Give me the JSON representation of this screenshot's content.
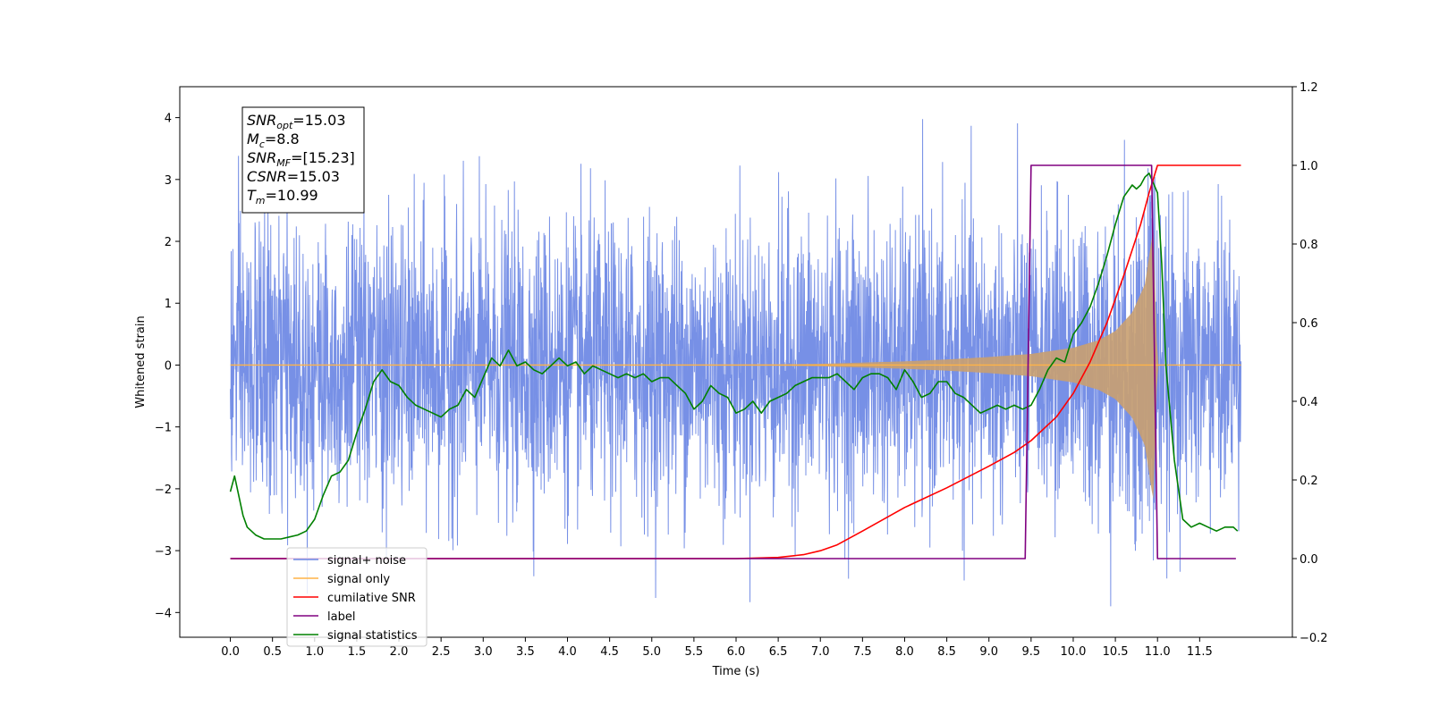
{
  "chart_data": {
    "type": "line",
    "xlabel": "Time (s)",
    "ylabel": "Whitened strain",
    "xlim": [
      -0.6,
      12.6
    ],
    "ylim": [
      -4.4,
      4.5
    ],
    "y2lim": [
      -0.2,
      1.2
    ],
    "x_ticks": [
      "0.0",
      "0.5",
      "1.0",
      "1.5",
      "2.0",
      "2.5",
      "3.0",
      "3.5",
      "4.0",
      "4.5",
      "5.0",
      "5.5",
      "6.0",
      "6.5",
      "7.0",
      "7.5",
      "8.0",
      "8.5",
      "9.0",
      "9.5",
      "10.0",
      "10.5",
      "11.0",
      "11.5"
    ],
    "y_ticks": [
      "−4",
      "−3",
      "−2",
      "−1",
      "0",
      "1",
      "2",
      "3",
      "4"
    ],
    "y2_ticks": [
      "−0.2",
      "0.0",
      "0.2",
      "0.4",
      "0.6",
      "0.8",
      "1.0",
      "1.2"
    ],
    "info_box": [
      {
        "base": "SNR",
        "sub": "opt",
        "rest": "=15.03"
      },
      {
        "base": "M",
        "sub": "c",
        "rest": "=8.8"
      },
      {
        "base": "SNR",
        "sub": "MF",
        "rest": "=[15.23]"
      },
      {
        "base": "CSNR",
        "sub": "",
        "rest": "=15.03"
      },
      {
        "base": "T",
        "sub": "m",
        "rest": "=10.99"
      }
    ],
    "legend": {
      "location": "lower-left",
      "entries": [
        {
          "label": "signal+ noise",
          "color": "#6b87e4"
        },
        {
          "label": "signal only",
          "color": "#ffb347"
        },
        {
          "label": "cumilative SNR",
          "color": "#ff0000"
        },
        {
          "label": "label",
          "color": "#800080"
        },
        {
          "label": "signal statistics",
          "color": "#008000"
        }
      ]
    },
    "series": [
      {
        "name": "signal+ noise",
        "axis": "left",
        "color": "#6b87e4",
        "style": "noise",
        "x_range": [
          0.0,
          11.99
        ],
        "typical_envelope": [
          -2.5,
          2.5
        ],
        "peak_range": [
          -3.9,
          4.1
        ]
      },
      {
        "name": "signal only",
        "axis": "left",
        "color": "#ffb347",
        "style": "chirp-envelope",
        "envelope_x": [
          0.0,
          6.5,
          7.0,
          7.5,
          8.0,
          8.5,
          9.0,
          9.5,
          10.0,
          10.3,
          10.5,
          10.7,
          10.85,
          10.95,
          11.0,
          11.99
        ],
        "envelope_y": [
          0.0,
          0.01,
          0.02,
          0.04,
          0.06,
          0.09,
          0.13,
          0.18,
          0.28,
          0.4,
          0.55,
          0.85,
          1.3,
          2.2,
          0.0,
          0.0
        ]
      },
      {
        "name": "cumilative SNR",
        "axis": "right",
        "color": "#ff0000",
        "x": [
          0.0,
          6.0,
          6.5,
          6.8,
          7.0,
          7.2,
          7.5,
          8.0,
          8.5,
          9.0,
          9.3,
          9.5,
          9.8,
          10.0,
          10.2,
          10.4,
          10.6,
          10.8,
          10.9,
          11.0,
          11.99
        ],
        "values": [
          0.0,
          0.0,
          0.003,
          0.01,
          0.02,
          0.035,
          0.07,
          0.13,
          0.18,
          0.235,
          0.27,
          0.3,
          0.36,
          0.42,
          0.5,
          0.6,
          0.72,
          0.85,
          0.93,
          1.0,
          1.0
        ]
      },
      {
        "name": "label",
        "axis": "right",
        "color": "#800080",
        "x": [
          0.0,
          9.43,
          9.5,
          10.93,
          11.0,
          11.93
        ],
        "values": [
          0.0,
          0.0,
          1.0,
          1.0,
          0.0,
          0.0
        ]
      },
      {
        "name": "signal statistics",
        "axis": "right",
        "color": "#008000",
        "x": [
          0.0,
          0.05,
          0.1,
          0.15,
          0.2,
          0.3,
          0.4,
          0.5,
          0.6,
          0.7,
          0.8,
          0.9,
          1.0,
          1.1,
          1.2,
          1.3,
          1.4,
          1.5,
          1.6,
          1.7,
          1.8,
          1.9,
          2.0,
          2.1,
          2.2,
          2.3,
          2.4,
          2.5,
          2.6,
          2.7,
          2.8,
          2.9,
          3.0,
          3.1,
          3.2,
          3.3,
          3.4,
          3.5,
          3.6,
          3.7,
          3.8,
          3.9,
          4.0,
          4.1,
          4.2,
          4.3,
          4.4,
          4.5,
          4.6,
          4.7,
          4.8,
          4.9,
          5.0,
          5.1,
          5.2,
          5.3,
          5.4,
          5.5,
          5.6,
          5.7,
          5.8,
          5.9,
          6.0,
          6.1,
          6.2,
          6.3,
          6.4,
          6.5,
          6.6,
          6.7,
          6.8,
          6.9,
          7.0,
          7.1,
          7.2,
          7.3,
          7.4,
          7.5,
          7.6,
          7.7,
          7.8,
          7.9,
          8.0,
          8.1,
          8.2,
          8.3,
          8.4,
          8.5,
          8.6,
          8.7,
          8.8,
          8.9,
          9.0,
          9.1,
          9.2,
          9.3,
          9.4,
          9.5,
          9.6,
          9.7,
          9.8,
          9.9,
          10.0,
          10.1,
          10.2,
          10.3,
          10.4,
          10.5,
          10.6,
          10.7,
          10.75,
          10.8,
          10.85,
          10.9,
          11.0,
          11.05,
          11.1,
          11.2,
          11.3,
          11.4,
          11.5,
          11.6,
          11.7,
          11.8,
          11.9,
          11.95
        ],
        "values": [
          0.17,
          0.21,
          0.16,
          0.11,
          0.08,
          0.06,
          0.05,
          0.05,
          0.05,
          0.055,
          0.06,
          0.07,
          0.1,
          0.16,
          0.21,
          0.22,
          0.25,
          0.32,
          0.38,
          0.45,
          0.48,
          0.45,
          0.44,
          0.41,
          0.39,
          0.38,
          0.37,
          0.36,
          0.38,
          0.39,
          0.43,
          0.41,
          0.46,
          0.51,
          0.49,
          0.53,
          0.49,
          0.5,
          0.48,
          0.47,
          0.49,
          0.51,
          0.49,
          0.5,
          0.47,
          0.49,
          0.48,
          0.47,
          0.46,
          0.47,
          0.46,
          0.47,
          0.45,
          0.46,
          0.46,
          0.44,
          0.42,
          0.38,
          0.4,
          0.44,
          0.42,
          0.41,
          0.37,
          0.38,
          0.4,
          0.37,
          0.4,
          0.41,
          0.42,
          0.44,
          0.45,
          0.46,
          0.46,
          0.46,
          0.47,
          0.45,
          0.43,
          0.46,
          0.47,
          0.47,
          0.46,
          0.43,
          0.48,
          0.45,
          0.41,
          0.42,
          0.45,
          0.45,
          0.42,
          0.41,
          0.39,
          0.37,
          0.38,
          0.39,
          0.38,
          0.39,
          0.38,
          0.39,
          0.43,
          0.48,
          0.51,
          0.5,
          0.57,
          0.6,
          0.64,
          0.7,
          0.77,
          0.85,
          0.92,
          0.95,
          0.94,
          0.95,
          0.97,
          0.98,
          0.93,
          0.75,
          0.49,
          0.25,
          0.1,
          0.08,
          0.09,
          0.08,
          0.07,
          0.08,
          0.08,
          0.07
        ]
      }
    ]
  }
}
